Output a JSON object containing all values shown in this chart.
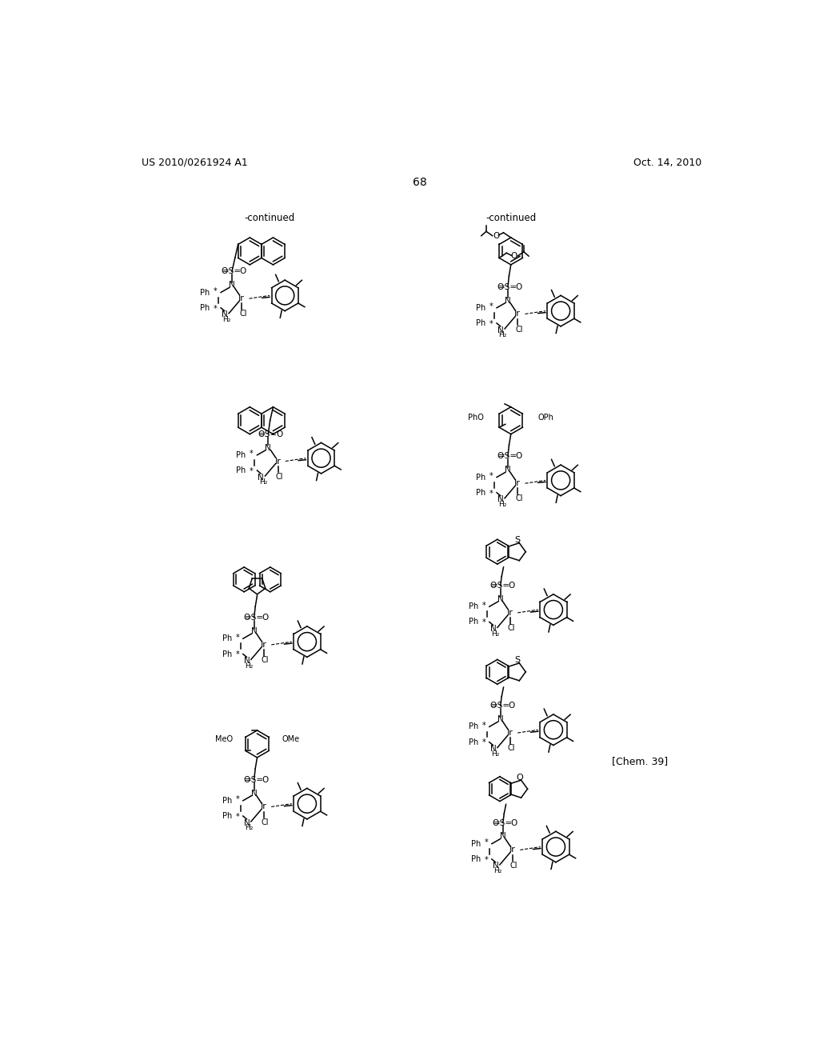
{
  "page_header_left": "US 2010/0261924 A1",
  "page_header_right": "Oct. 14, 2010",
  "page_number": "68",
  "continued_left": "-continued",
  "continued_right": "-continued",
  "chem_label": "[Chem. 39]",
  "background_color": "#ffffff",
  "text_color": "#000000",
  "figsize": [
    10.24,
    13.2
  ],
  "dpi": 100
}
